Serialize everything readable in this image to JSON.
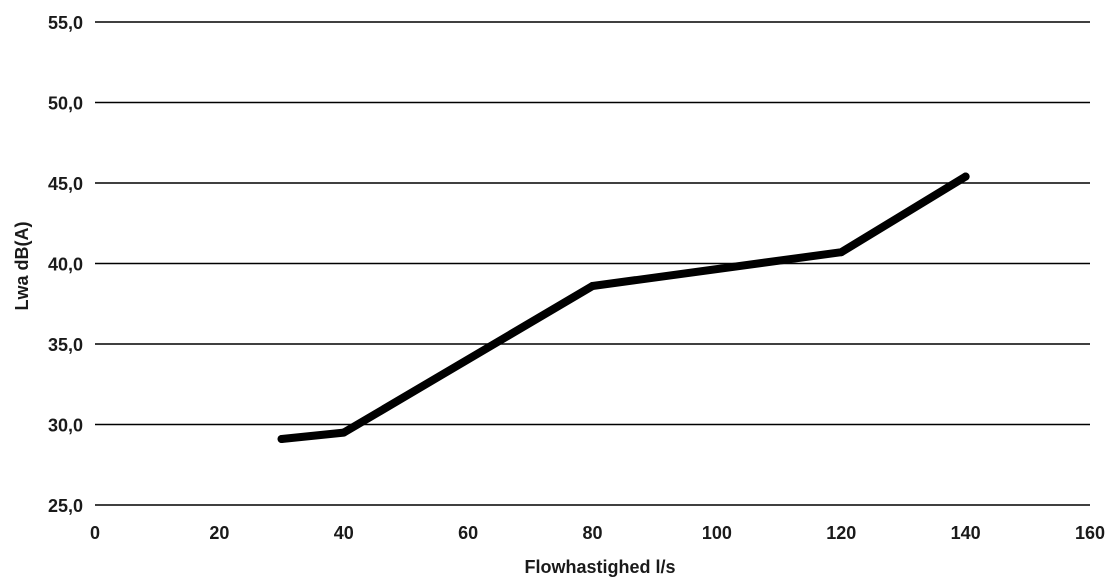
{
  "chart_data": {
    "type": "line",
    "title": "",
    "xlabel": "Flowhastighed l/s",
    "ylabel": "Lwa dB(A)",
    "xlim": [
      0,
      160
    ],
    "ylim": [
      25,
      55
    ],
    "x_ticks": [
      0,
      20,
      40,
      60,
      80,
      100,
      120,
      140,
      160
    ],
    "x_tick_labels": [
      "0",
      "20",
      "40",
      "60",
      "80",
      "100",
      "120",
      "140",
      "160"
    ],
    "y_ticks": [
      25,
      30,
      35,
      40,
      45,
      50,
      55
    ],
    "y_tick_labels": [
      "25,0",
      "30,0",
      "35,0",
      "40,0",
      "45,0",
      "50,0",
      "55,0"
    ],
    "grid": "horizontal",
    "legend": "none",
    "series": [
      {
        "color": "#000000",
        "x": [
          30,
          40,
          80,
          120,
          140
        ],
        "y": [
          29.1,
          29.5,
          38.6,
          40.7,
          45.4
        ]
      }
    ]
  }
}
